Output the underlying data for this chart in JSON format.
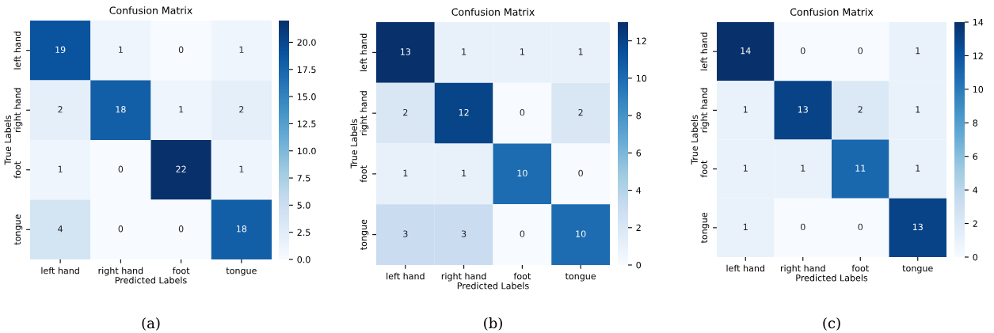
{
  "chart_data": [
    {
      "type": "heatmap",
      "title": "Confusion Matrix",
      "xlabel": "Predicted Labels",
      "ylabel": "True Labels",
      "categories": [
        "left hand",
        "right hand",
        "foot",
        "tongue"
      ],
      "y_categories": [
        "left hand",
        "right hand",
        "foot",
        "tongue"
      ],
      "cells": [
        [
          19,
          1,
          0,
          1
        ],
        [
          2,
          18,
          1,
          2
        ],
        [
          1,
          0,
          22,
          1
        ],
        [
          4,
          0,
          0,
          18
        ]
      ],
      "data_labels": true,
      "clim": [
        0,
        22
      ],
      "cticks": [
        {
          "value": 0,
          "label": "0.0"
        },
        {
          "value": 2.5,
          "label": "2.5"
        },
        {
          "value": 5,
          "label": "5.0"
        },
        {
          "value": 7.5,
          "label": "7.5"
        },
        {
          "value": 10,
          "label": "10.0"
        },
        {
          "value": 12.5,
          "label": "12.5"
        },
        {
          "value": 15,
          "label": "15.0"
        },
        {
          "value": 17.5,
          "label": "17.5"
        },
        {
          "value": 20,
          "label": "20.0"
        }
      ],
      "annotations": [
        "(a)"
      ]
    },
    {
      "type": "heatmap",
      "title": "Confusion Matrix",
      "xlabel": "Predicted Labels",
      "ylabel": "True Labels",
      "categories": [
        "left hand",
        "right hand",
        "foot",
        "tongue"
      ],
      "y_categories": [
        "left hand",
        "right hand",
        "foot",
        "tongue"
      ],
      "cells": [
        [
          13,
          1,
          1,
          1
        ],
        [
          2,
          12,
          0,
          2
        ],
        [
          1,
          1,
          10,
          0
        ],
        [
          3,
          3,
          0,
          10
        ]
      ],
      "data_labels": true,
      "clim": [
        0,
        13
      ],
      "cticks": [
        0,
        2,
        4,
        6,
        8,
        10,
        12
      ],
      "annotations": [
        "(b)"
      ]
    },
    {
      "type": "heatmap",
      "title": "Confusion Matrix",
      "xlabel": "Predicted Labels",
      "ylabel": "True Labels",
      "categories": [
        "left hand",
        "right hand",
        "foot",
        "tongue"
      ],
      "y_categories": [
        "left hand",
        "right hand",
        "foot",
        "tongue"
      ],
      "cells": [
        [
          14,
          0,
          0,
          1
        ],
        [
          1,
          13,
          2,
          1
        ],
        [
          1,
          1,
          11,
          1
        ],
        [
          1,
          0,
          0,
          13
        ]
      ],
      "data_labels": true,
      "clim": [
        0,
        14
      ],
      "cticks": [
        0,
        2,
        4,
        6,
        8,
        10,
        12,
        14
      ],
      "annotations": [
        "(c)"
      ]
    }
  ]
}
